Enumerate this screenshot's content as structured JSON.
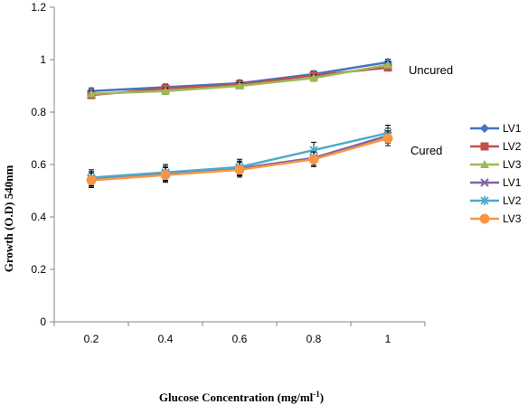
{
  "chart_data": {
    "type": "line",
    "x": [
      0.2,
      0.4,
      0.6,
      0.8,
      1
    ],
    "x_tick_labels": [
      "0.2",
      "0.4",
      "0.6",
      "0.8",
      "1"
    ],
    "xlabel": "Glucose Concentration (mg/ml",
    "xlabel_sup": "-1",
    "xlabel_end": ")",
    "ylabel": "Growth (O.D) 540nm",
    "ylim": [
      0,
      1.2
    ],
    "y_ticks": [
      0,
      0.2,
      0.4,
      0.6,
      0.8,
      1,
      1.2
    ],
    "y_tick_labels": [
      "0",
      "0.2",
      "0.4",
      "0.6",
      "0.8",
      "1",
      "1.2"
    ],
    "grid": false,
    "legend_position": "right",
    "annotations": [
      {
        "text": "Uncured",
        "near_series": "LV1 (uncured)"
      },
      {
        "text": "Cured",
        "near_series": "LV2 (cured)"
      }
    ],
    "series": [
      {
        "name": "LV1",
        "group": "Uncured",
        "color": "#4472C4",
        "marker": "diamond",
        "values": [
          0.88,
          0.895,
          0.91,
          0.945,
          0.99
        ],
        "err": [
          0.012,
          0.012,
          0.012,
          0.012,
          0.012
        ]
      },
      {
        "name": "LV2",
        "group": "Uncured",
        "color": "#C0504D",
        "marker": "square",
        "values": [
          0.865,
          0.89,
          0.905,
          0.94,
          0.97
        ],
        "err": [
          0.012,
          0.012,
          0.012,
          0.012,
          0.012
        ]
      },
      {
        "name": "LV3",
        "group": "Uncured",
        "color": "#9BBB59",
        "marker": "triangle",
        "values": [
          0.87,
          0.88,
          0.9,
          0.93,
          0.98
        ],
        "err": [
          0.012,
          0.012,
          0.012,
          0.012,
          0.012
        ]
      },
      {
        "name": "LV1",
        "group": "Cured",
        "color": "#8064A2",
        "marker": "x",
        "values": [
          0.545,
          0.565,
          0.585,
          0.625,
          0.71
        ],
        "err": [
          0.028,
          0.028,
          0.028,
          0.028,
          0.028
        ]
      },
      {
        "name": "LV2",
        "group": "Cured",
        "color": "#4BACC6",
        "marker": "star",
        "values": [
          0.55,
          0.57,
          0.59,
          0.655,
          0.72
        ],
        "err": [
          0.03,
          0.03,
          0.03,
          0.03,
          0.03
        ]
      },
      {
        "name": "LV3",
        "group": "Cured",
        "color": "#F79646",
        "marker": "circle",
        "values": [
          0.54,
          0.56,
          0.58,
          0.62,
          0.7
        ],
        "err": [
          0.028,
          0.028,
          0.028,
          0.028,
          0.028
        ]
      }
    ]
  }
}
